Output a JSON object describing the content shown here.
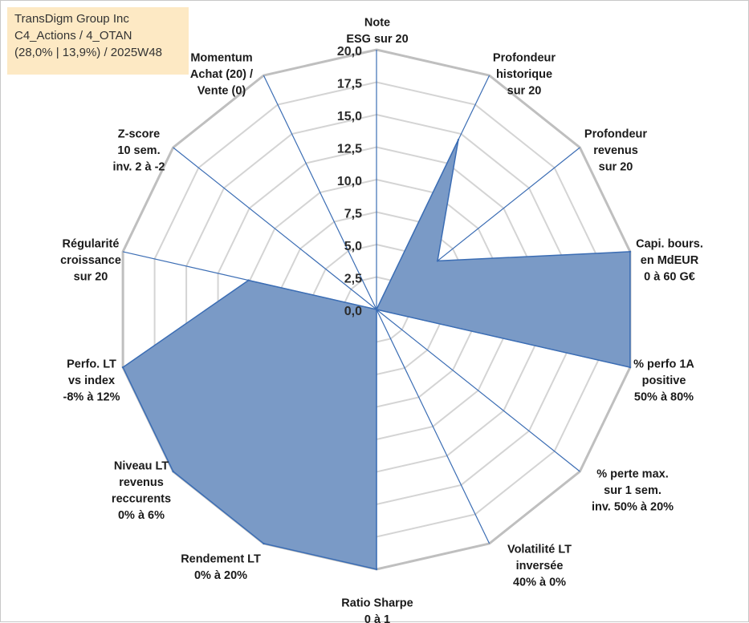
{
  "info": {
    "lines": [
      "TransDigm Group Inc",
      "C4_Actions / 4_OTAN",
      "(28,0% | 13,9%) / 2025W48"
    ]
  },
  "colors": {
    "fill": "#7a9ac6",
    "stroke": "#3b6db4",
    "outer_ring": "#bfbfbf",
    "inner_ring": "#d4d4d4",
    "text": "#1a1a1a",
    "info_bg": "#fde9c4"
  },
  "chart_data": {
    "type": "radar",
    "rmax": 20,
    "ticks": [
      "0,0",
      "2,5",
      "5,0",
      "7,5",
      "10,0",
      "12,5",
      "15,0",
      "17,5",
      "20,0"
    ],
    "tick_values": [
      0,
      2.5,
      5,
      7.5,
      10,
      12.5,
      15,
      17.5,
      20
    ],
    "grid": true,
    "axes": [
      {
        "label": [
          "Note",
          "ESG sur 20"
        ],
        "value": 0
      },
      {
        "label": [
          "Profondeur",
          "historique",
          "sur 20"
        ],
        "value": 14.5
      },
      {
        "label": [
          "Profondeur",
          "revenus",
          "sur 20"
        ],
        "value": 6
      },
      {
        "label": [
          "Capi. bours.",
          "en MdEUR",
          "0 à 60 G€"
        ],
        "value": 20
      },
      {
        "label": [
          "% perfo 1A",
          "positive",
          "50% à 80%"
        ],
        "value": 20
      },
      {
        "label": [
          "% perte max.",
          "sur 1 sem.",
          "inv. 50% à 20%"
        ],
        "value": 0
      },
      {
        "label": [
          "Volatilité LT",
          "inversée",
          "40% à 0%"
        ],
        "value": 0
      },
      {
        "label": [
          "Ratio Sharpe",
          "0 à 1"
        ],
        "value": 20
      },
      {
        "label": [
          "Rendement LT",
          "0% à 20%"
        ],
        "value": 20
      },
      {
        "label": [
          "Niveau LT",
          "revenus",
          "reccurents",
          "0% à 6%"
        ],
        "value": 20
      },
      {
        "label": [
          "Perfo. LT",
          "vs index",
          "-8% à 12%"
        ],
        "value": 20
      },
      {
        "label": [
          "Régularité",
          "croissance",
          "sur 20"
        ],
        "value": 10.1
      },
      {
        "label": [
          "Z-score",
          "10 sem.",
          "inv. 2 à -2"
        ],
        "value": 0
      },
      {
        "label": [
          "Momentum",
          "Achat (20) /",
          "Vente (0)"
        ],
        "value": 0
      }
    ]
  }
}
